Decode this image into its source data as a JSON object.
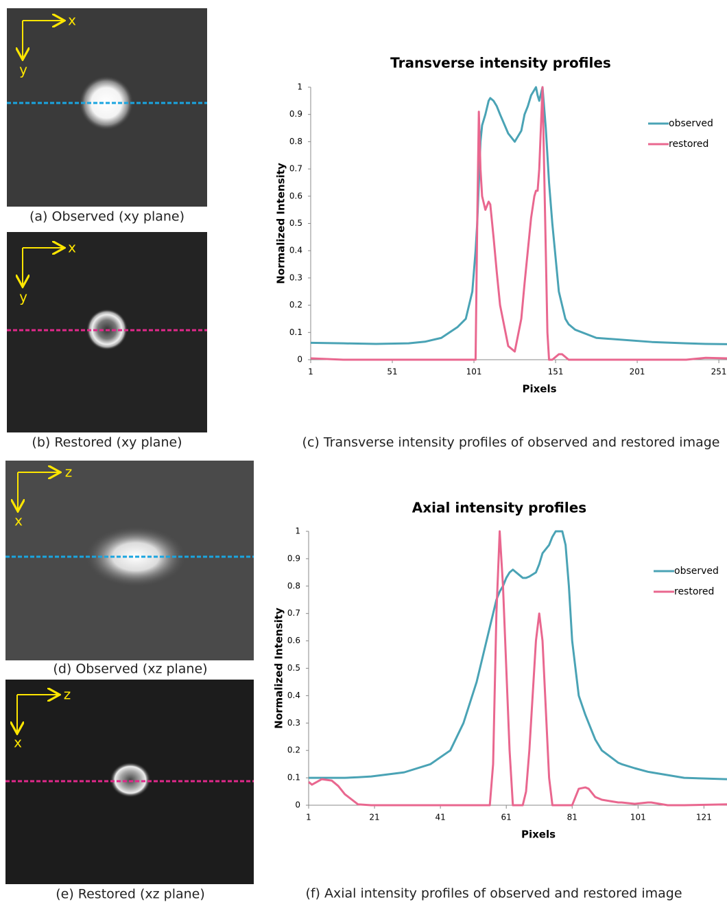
{
  "images": [
    {
      "caption": "(a) Observed (xy plane)",
      "axes": [
        "x",
        "y"
      ]
    },
    {
      "caption": "(b) Restored (xy plane)",
      "axes": [
        "x",
        "y"
      ]
    },
    {
      "caption": "(d) Observed (xz plane)",
      "axes": [
        "z",
        "x"
      ]
    },
    {
      "caption": "(e) Restored (xz plane)",
      "axes": [
        "z",
        "x"
      ]
    }
  ],
  "chart_data": [
    {
      "type": "line",
      "title": "Transverse intensity profiles",
      "caption": "(c) Transverse intensity profiles of observed and restored image",
      "x_label": "Pixels",
      "y_label": "Normalized Intensity",
      "x": [
        1,
        21,
        41,
        61,
        71,
        81,
        91,
        96,
        100,
        102,
        103,
        104,
        105,
        106,
        108,
        110,
        111,
        113,
        115,
        117,
        122,
        126,
        130,
        132,
        134,
        136,
        138,
        139,
        140,
        141,
        143,
        145,
        146,
        147,
        149,
        153,
        155,
        157,
        159,
        163,
        176,
        210,
        231,
        243,
        256
      ],
      "series": [
        {
          "name": "observed",
          "color": "#4aa3b5",
          "values": [
            0.062,
            0.06,
            0.058,
            0.06,
            0.066,
            0.08,
            0.12,
            0.15,
            0.25,
            0.4,
            0.5,
            0.65,
            0.8,
            0.86,
            0.9,
            0.95,
            0.96,
            0.95,
            0.93,
            0.9,
            0.83,
            0.8,
            0.84,
            0.9,
            0.93,
            0.97,
            0.99,
            1.0,
            0.97,
            0.95,
            1.0,
            0.85,
            0.75,
            0.65,
            0.5,
            0.25,
            0.2,
            0.15,
            0.13,
            0.11,
            0.08,
            0.065,
            0.06,
            0.058,
            0.057
          ]
        },
        {
          "name": "restored",
          "color": "#e9678f",
          "values": [
            0.005,
            0,
            0,
            0,
            0,
            0,
            0,
            0,
            0,
            0,
            0.5,
            0.91,
            0.7,
            0.6,
            0.55,
            0.58,
            0.57,
            0.45,
            0.32,
            0.2,
            0.05,
            0.03,
            0.15,
            0.28,
            0.4,
            0.52,
            0.6,
            0.62,
            0.62,
            0.7,
            1.0,
            0.4,
            0.1,
            0,
            0,
            0.02,
            0.02,
            0.01,
            0,
            0,
            0,
            0,
            0,
            0.007,
            0.005
          ]
        }
      ],
      "xlim": [
        1,
        256
      ],
      "xticks": [
        1,
        51,
        101,
        151,
        201,
        251
      ],
      "ylim": [
        0,
        1
      ],
      "yticks": [
        0,
        0.1,
        0.2,
        0.3,
        0.4,
        0.5,
        0.6,
        0.7,
        0.8,
        0.9,
        1
      ],
      "legend": "right"
    },
    {
      "type": "line",
      "title": "Axial intensity profiles",
      "caption": "(f) Axial intensity profiles of observed and restored image",
      "x_label": "Pixels",
      "y_label": "Normalized Intensity",
      "x": [
        1,
        2,
        5,
        8,
        10,
        12,
        16,
        20,
        30,
        38,
        44,
        48,
        52,
        56,
        57,
        58,
        59,
        60,
        61,
        62,
        63,
        65,
        66,
        67,
        68,
        70,
        71,
        72,
        74,
        75,
        76,
        78,
        79,
        80,
        81,
        83,
        85,
        86,
        88,
        90,
        95,
        96,
        100,
        104,
        105,
        110,
        115,
        128
      ],
      "series": [
        {
          "name": "observed",
          "color": "#4aa3b5",
          "values": [
            0.1,
            0.1,
            0.1,
            0.1,
            0.1,
            0.1,
            0.102,
            0.105,
            0.12,
            0.15,
            0.2,
            0.3,
            0.45,
            0.65,
            0.7,
            0.75,
            0.78,
            0.8,
            0.83,
            0.85,
            0.86,
            0.84,
            0.83,
            0.83,
            0.835,
            0.85,
            0.88,
            0.92,
            0.95,
            0.98,
            1.0,
            1.0,
            0.95,
            0.8,
            0.6,
            0.4,
            0.33,
            0.3,
            0.24,
            0.2,
            0.155,
            0.15,
            0.135,
            0.122,
            0.12,
            0.11,
            0.1,
            0.095
          ]
        },
        {
          "name": "restored",
          "color": "#e9678f",
          "values": [
            0.085,
            0.075,
            0.095,
            0.09,
            0.07,
            0.04,
            0.003,
            0,
            0,
            0,
            0,
            0,
            0,
            0,
            0.15,
            0.7,
            1.0,
            0.8,
            0.5,
            0.2,
            0,
            0,
            0,
            0.05,
            0.2,
            0.6,
            0.7,
            0.6,
            0.1,
            0,
            0,
            0,
            0,
            0,
            0,
            0.06,
            0.065,
            0.06,
            0.03,
            0.02,
            0.01,
            0.01,
            0.005,
            0.01,
            0.01,
            0,
            0,
            0.003
          ]
        }
      ],
      "xlim": [
        1,
        128
      ],
      "xticks": [
        1,
        21,
        41,
        61,
        81,
        101,
        121
      ],
      "ylim": [
        0,
        1
      ],
      "yticks": [
        0,
        0.1,
        0.2,
        0.3,
        0.4,
        0.5,
        0.6,
        0.7,
        0.8,
        0.9,
        1
      ],
      "legend": "right"
    }
  ]
}
